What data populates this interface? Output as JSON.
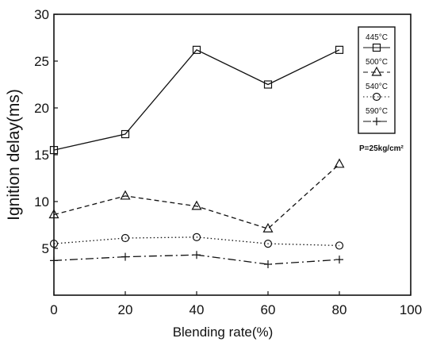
{
  "chart_data": {
    "type": "line",
    "xlabel": "Blending rate(%)",
    "ylabel": "Ignition delay(ms)",
    "xlim": [
      0,
      100
    ],
    "ylim": [
      0,
      30
    ],
    "x_ticks": [
      "0",
      "20",
      "40",
      "60",
      "80",
      "100"
    ],
    "y_ticks": [
      "5",
      "10",
      "15",
      "20",
      "25",
      "30"
    ],
    "x": [
      0,
      20,
      40,
      60,
      80
    ],
    "series": [
      {
        "name": "445°C",
        "marker": "square",
        "dash": "solid",
        "values": [
          15.5,
          17.2,
          26.2,
          22.5,
          26.2
        ]
      },
      {
        "name": "500°C",
        "marker": "triangle",
        "dash": "dashed",
        "values": [
          8.6,
          10.6,
          9.5,
          7.1,
          14.0
        ]
      },
      {
        "name": "540°C",
        "marker": "circle",
        "dash": "dotted",
        "values": [
          5.5,
          6.1,
          6.2,
          5.5,
          5.3
        ]
      },
      {
        "name": "590°C",
        "marker": "plus",
        "dash": "dashdot",
        "values": [
          3.7,
          4.1,
          4.3,
          3.3,
          3.8
        ]
      }
    ],
    "annotation": "P=25kg/cm²",
    "grid": false,
    "legend_position": "right"
  }
}
